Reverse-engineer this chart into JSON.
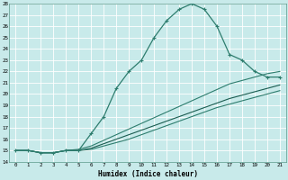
{
  "title": "",
  "xlabel": "Humidex (Indice chaleur)",
  "xlim": [
    -0.5,
    21.5
  ],
  "ylim": [
    14,
    28
  ],
  "yticks": [
    14,
    15,
    16,
    17,
    18,
    19,
    20,
    21,
    22,
    23,
    24,
    25,
    26,
    27,
    28
  ],
  "xticks": [
    0,
    1,
    2,
    3,
    4,
    5,
    6,
    7,
    8,
    9,
    10,
    11,
    12,
    13,
    14,
    15,
    16,
    17,
    18,
    19,
    20,
    21
  ],
  "bg_color": "#c8eaea",
  "grid_color": "#ffffff",
  "lines": [
    {
      "x": [
        0,
        1,
        2,
        3,
        4,
        5,
        6,
        7,
        8,
        9,
        10,
        11,
        12,
        13,
        14,
        15,
        16,
        17,
        18,
        19,
        20,
        21
      ],
      "y": [
        15.0,
        15.0,
        14.8,
        14.8,
        15.0,
        15.0,
        16.5,
        18.0,
        20.5,
        22.0,
        23.0,
        25.0,
        26.5,
        27.5,
        28.0,
        27.5,
        26.0,
        23.5,
        23.0,
        22.0,
        21.5,
        21.5
      ],
      "color": "#2e7d6e",
      "lw": 0.9,
      "marker": "+"
    },
    {
      "x": [
        0,
        1,
        2,
        3,
        4,
        5,
        6,
        7,
        8,
        9,
        10,
        11,
        12,
        13,
        14,
        15,
        16,
        17,
        18,
        19,
        20,
        21
      ],
      "y": [
        15.0,
        15.0,
        14.8,
        14.8,
        15.0,
        15.1,
        15.4,
        15.9,
        16.4,
        16.9,
        17.4,
        17.9,
        18.4,
        18.9,
        19.4,
        19.9,
        20.4,
        20.9,
        21.2,
        21.5,
        21.8,
        22.0
      ],
      "color": "#2e7d6e",
      "lw": 0.8,
      "marker": null
    },
    {
      "x": [
        0,
        1,
        2,
        3,
        4,
        5,
        6,
        7,
        8,
        9,
        10,
        11,
        12,
        13,
        14,
        15,
        16,
        17,
        18,
        19,
        20,
        21
      ],
      "y": [
        15.0,
        15.0,
        14.8,
        14.8,
        15.0,
        15.0,
        15.2,
        15.6,
        16.0,
        16.4,
        16.8,
        17.2,
        17.6,
        18.0,
        18.4,
        18.8,
        19.2,
        19.6,
        19.9,
        20.2,
        20.5,
        20.8
      ],
      "color": "#1a5c50",
      "lw": 0.8,
      "marker": null
    },
    {
      "x": [
        0,
        1,
        2,
        3,
        4,
        5,
        6,
        7,
        8,
        9,
        10,
        11,
        12,
        13,
        14,
        15,
        16,
        17,
        18,
        19,
        20,
        21
      ],
      "y": [
        15.0,
        15.0,
        14.8,
        14.8,
        15.0,
        15.0,
        15.1,
        15.4,
        15.7,
        16.0,
        16.4,
        16.8,
        17.2,
        17.6,
        18.0,
        18.4,
        18.8,
        19.1,
        19.4,
        19.7,
        20.0,
        20.3
      ],
      "color": "#2e7d6e",
      "lw": 0.8,
      "marker": null
    }
  ]
}
